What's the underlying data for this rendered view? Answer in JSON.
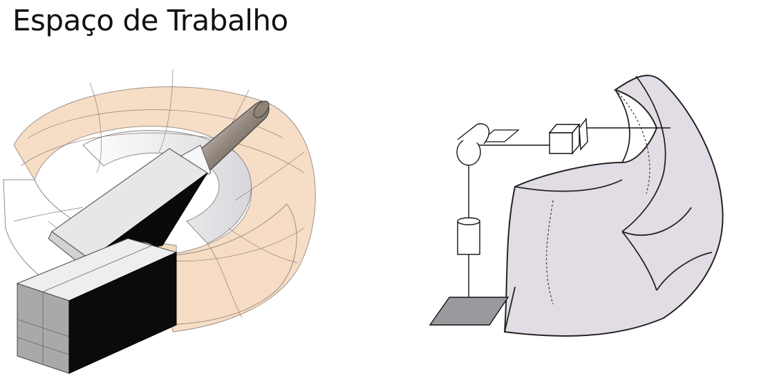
{
  "slide": {
    "title": "Espaço de Trabalho"
  },
  "colors": {
    "torus_fill": "#f6dcc4",
    "torus_inner": "#e3e3e6",
    "volume_fill": "#e2dde4",
    "arm_light": "#e7e7e7",
    "arm_dark": "#0a0a0a",
    "base_plate": "#9a9a9e"
  },
  "figures": {
    "left": {
      "icon": "toroidal-workspace-robot-illustration"
    },
    "right": {
      "icon": "scara-workspace-volume-illustration"
    }
  }
}
